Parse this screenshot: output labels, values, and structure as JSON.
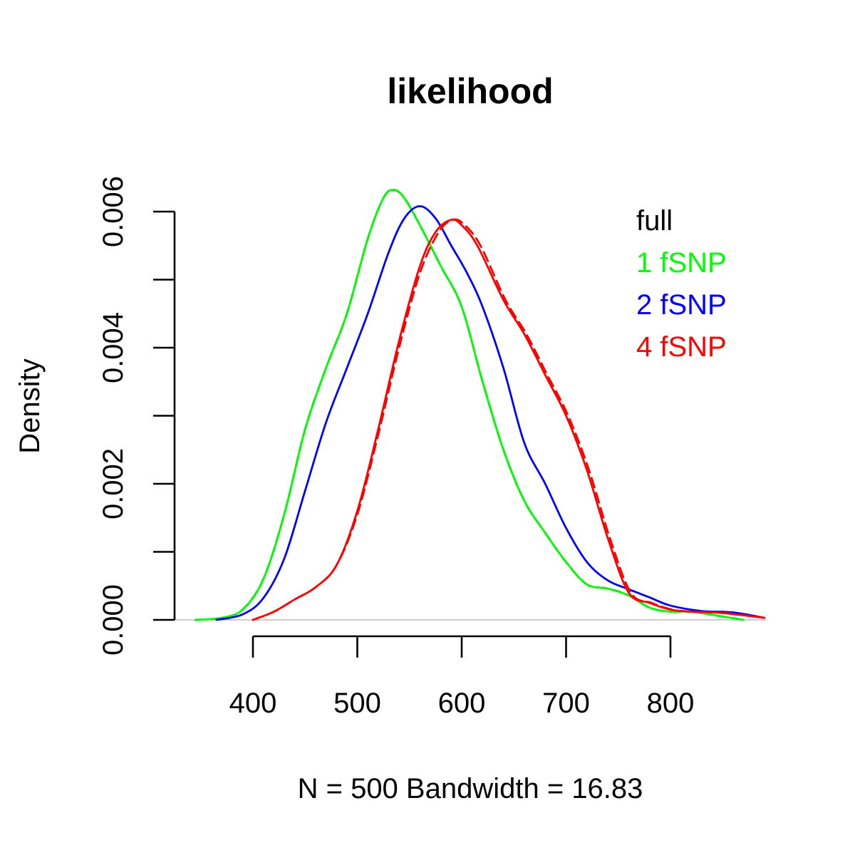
{
  "chart_data": {
    "type": "line",
    "title": "likelihood",
    "xlabel": "N = 500   Bandwidth = 16.83",
    "ylabel": "Density",
    "xlim": [
      330,
      890
    ],
    "ylim": [
      0,
      0.0065
    ],
    "x_ticks": [
      400,
      500,
      600,
      700,
      800
    ],
    "x_tick_labels": [
      "400",
      "500",
      "600",
      "700",
      "800"
    ],
    "y_ticks": [
      0,
      0.001,
      0.002,
      0.003,
      0.004,
      0.005,
      0.006
    ],
    "y_tick_labels": [
      "0.000",
      "",
      "0.002",
      "",
      "0.004",
      "",
      "0.006"
    ],
    "grid": false,
    "legend_position": "top-right",
    "legend": [
      {
        "label": "full",
        "color": "#000000"
      },
      {
        "label": "1 fSNP",
        "color": "#00ff00"
      },
      {
        "label": "2 fSNP",
        "color": "#0000ff"
      },
      {
        "label": "4 fSNP",
        "color": "#ff0000"
      }
    ],
    "series": [
      {
        "name": "full",
        "color": "#000000",
        "dash": "dashed",
        "x": [
          345,
          370,
          390,
          410,
          430,
          450,
          470,
          490,
          510,
          525,
          535,
          545,
          560,
          580,
          600,
          620,
          640,
          660,
          680,
          700,
          720,
          740,
          760,
          780,
          800,
          820,
          850,
          870
        ],
        "y": [
          0.0,
          3e-05,
          0.00015,
          0.0006,
          0.00155,
          0.0028,
          0.0037,
          0.0045,
          0.0056,
          0.0062,
          0.00632,
          0.0062,
          0.0058,
          0.0052,
          0.0046,
          0.0035,
          0.0025,
          0.00175,
          0.00128,
          0.00085,
          0.00052,
          0.00046,
          0.00036,
          0.00018,
          0.00012,
          0.00012,
          5e-05,
          0.0
        ]
      },
      {
        "name": "1 fSNP",
        "color": "#00ff00",
        "dash": "solid",
        "x": [
          345,
          370,
          390,
          410,
          430,
          450,
          470,
          490,
          510,
          525,
          535,
          545,
          560,
          580,
          600,
          620,
          640,
          660,
          680,
          700,
          720,
          740,
          760,
          780,
          800,
          820,
          850,
          870
        ],
        "y": [
          0.0,
          3e-05,
          0.00015,
          0.0006,
          0.00155,
          0.0028,
          0.0037,
          0.0045,
          0.0056,
          0.0062,
          0.00632,
          0.0062,
          0.0058,
          0.0052,
          0.0046,
          0.0035,
          0.0025,
          0.00175,
          0.00128,
          0.00085,
          0.00052,
          0.00046,
          0.00036,
          0.00018,
          0.00012,
          0.00012,
          5e-05,
          0.0
        ]
      },
      {
        "name": "2 fSNP",
        "color": "#0000ff",
        "dash": "solid",
        "x": [
          365,
          390,
          410,
          430,
          450,
          470,
          490,
          510,
          530,
          545,
          560,
          575,
          590,
          605,
          620,
          640,
          660,
          680,
          700,
          720,
          740,
          760,
          780,
          800,
          830,
          860,
          890
        ],
        "y": [
          0.0,
          8e-05,
          0.00032,
          0.0009,
          0.0019,
          0.0029,
          0.0037,
          0.0045,
          0.0054,
          0.0059,
          0.00608,
          0.0059,
          0.0055,
          0.0051,
          0.0046,
          0.0037,
          0.0026,
          0.002,
          0.00135,
          0.00085,
          0.00058,
          0.00045,
          0.00033,
          0.00021,
          0.00013,
          0.00011,
          3e-05
        ]
      },
      {
        "name": "4 fSNP",
        "color": "#ff0000",
        "dash": "solid",
        "x": [
          400,
          420,
          440,
          460,
          480,
          500,
          520,
          540,
          560,
          575,
          590,
          600,
          615,
          640,
          660,
          680,
          700,
          720,
          740,
          760,
          780,
          800,
          820,
          850,
          890
        ],
        "y": [
          0.0,
          0.00012,
          0.0003,
          0.00048,
          0.0008,
          0.0016,
          0.0028,
          0.0041,
          0.0052,
          0.0057,
          0.00588,
          0.0058,
          0.0055,
          0.0047,
          0.0042,
          0.0036,
          0.003,
          0.0022,
          0.0012,
          0.0004,
          0.00025,
          0.00015,
          0.00012,
          0.0001,
          3e-05
        ]
      },
      {
        "name": "4 fSNP (dashed)",
        "color": "#ff0000",
        "dash": "dashed",
        "x": [
          400,
          420,
          440,
          460,
          480,
          500,
          520,
          540,
          560,
          578,
          592,
          603,
          618,
          642,
          662,
          682,
          702,
          722,
          742,
          762,
          782,
          802,
          822,
          852,
          890
        ],
        "y": [
          0.0,
          0.00012,
          0.0003,
          0.00048,
          0.0008,
          0.00155,
          0.00272,
          0.004,
          0.0051,
          0.0057,
          0.00588,
          0.0058,
          0.0055,
          0.0047,
          0.0042,
          0.0036,
          0.003,
          0.0022,
          0.0012,
          0.0004,
          0.00025,
          0.00015,
          0.00012,
          0.0001,
          3e-05
        ]
      }
    ]
  }
}
